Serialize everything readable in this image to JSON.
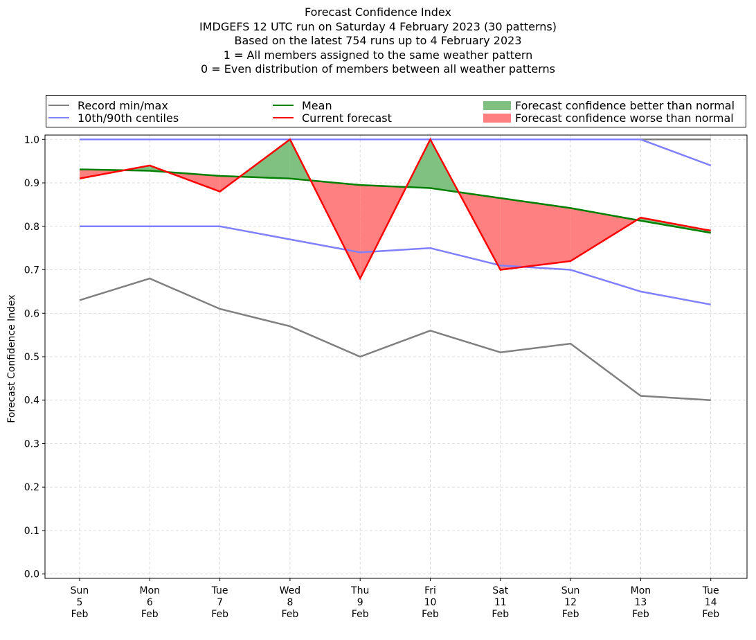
{
  "title_lines": [
    "Forecast Confidence Index",
    "IMDGEFS 12 UTC run on Saturday 4 February 2023 (30 patterns)",
    "Based on the latest 754 runs up to 4 February 2023",
    "1 = All members assigned to the same weather pattern",
    "0 = Even distribution of members between all weather patterns"
  ],
  "legend": {
    "record": "Record min/max",
    "centiles": "10th/90th centiles",
    "mean": "Mean",
    "current": "Current forecast",
    "better": "Forecast confidence better than normal",
    "worse": "Forecast confidence worse than normal"
  },
  "colors": {
    "record": "#808080",
    "centiles": "#8080ff",
    "mean": "#008000",
    "current": "#ff0000",
    "better": "#80c080",
    "worse": "#ff8080",
    "grid": "#d3d3d3"
  },
  "chart_data": {
    "type": "line",
    "ylabel": "Forecast Confidence Index",
    "ylim": [
      -0.01,
      1.01
    ],
    "yticks": [
      "0.0",
      "0.1",
      "0.2",
      "0.3",
      "0.4",
      "0.5",
      "0.6",
      "0.7",
      "0.8",
      "0.9",
      "1.0"
    ],
    "grid": true,
    "legend_position": "top",
    "x": [
      [
        "Sun",
        "5",
        "Feb"
      ],
      [
        "Mon",
        "6",
        "Feb"
      ],
      [
        "Tue",
        "7",
        "Feb"
      ],
      [
        "Wed",
        "8",
        "Feb"
      ],
      [
        "Thu",
        "9",
        "Feb"
      ],
      [
        "Fri",
        "10",
        "Feb"
      ],
      [
        "Sat",
        "11",
        "Feb"
      ],
      [
        "Sun",
        "12",
        "Feb"
      ],
      [
        "Mon",
        "13",
        "Feb"
      ],
      [
        "Tue",
        "14",
        "Feb"
      ]
    ],
    "series": [
      {
        "name": "Record min/max",
        "key": "record_max",
        "values": [
          1.0,
          1.0,
          1.0,
          1.0,
          1.0,
          1.0,
          1.0,
          1.0,
          1.0,
          1.0
        ]
      },
      {
        "name": "Record min/max",
        "key": "record_min",
        "values": [
          0.63,
          0.68,
          0.61,
          0.57,
          0.5,
          0.56,
          0.51,
          0.53,
          0.41,
          0.4
        ]
      },
      {
        "name": "10th/90th centiles",
        "key": "p90",
        "values": [
          1.0,
          1.0,
          1.0,
          1.0,
          1.0,
          1.0,
          1.0,
          1.0,
          1.0,
          0.94
        ]
      },
      {
        "name": "10th/90th centiles",
        "key": "p10",
        "values": [
          0.8,
          0.8,
          0.8,
          0.77,
          0.74,
          0.75,
          0.71,
          0.7,
          0.65,
          0.62
        ]
      },
      {
        "name": "Mean",
        "key": "mean",
        "values": [
          0.931,
          0.928,
          0.916,
          0.91,
          0.895,
          0.888,
          0.865,
          0.842,
          0.813,
          0.785
        ]
      },
      {
        "name": "Current forecast",
        "key": "current",
        "values": [
          0.91,
          0.94,
          0.88,
          1.0,
          0.68,
          1.0,
          0.7,
          0.72,
          0.82,
          0.79
        ]
      }
    ]
  }
}
